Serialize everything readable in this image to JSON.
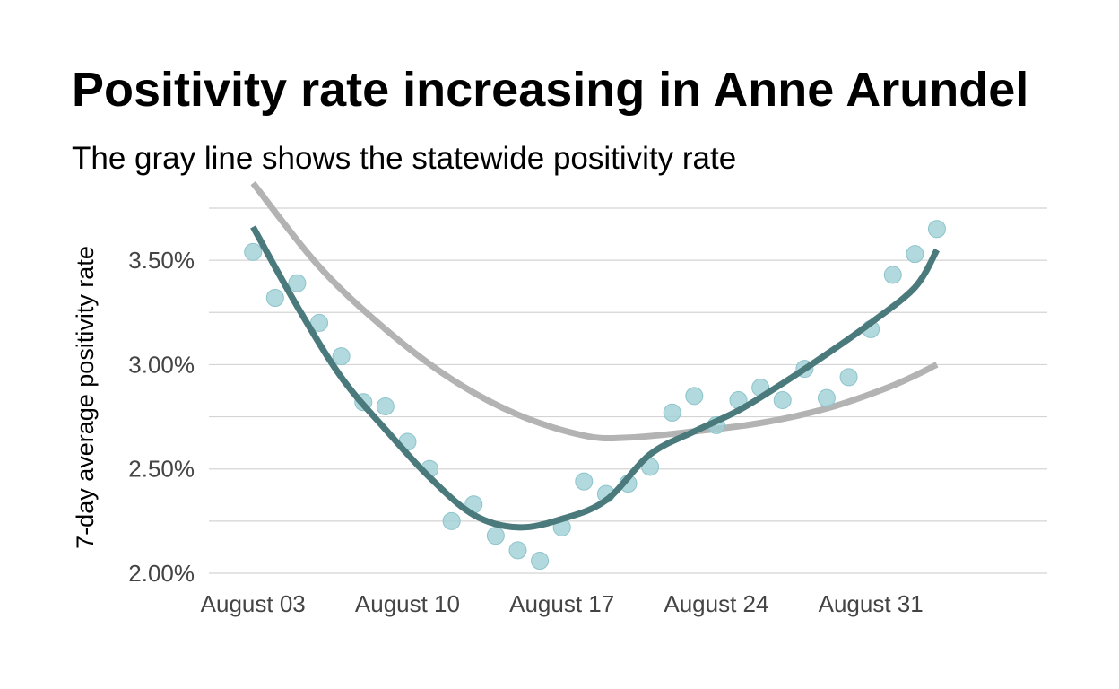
{
  "chart_data": {
    "type": "scatter",
    "title": "Positivity rate increasing in Anne Arundel",
    "subtitle": "The gray line shows the statewide positivity rate",
    "xlabel": "",
    "ylabel": "7-day average positivity rate",
    "xlim": [
      "2020-08-01",
      "2020-09-08"
    ],
    "ylim": [
      2.0,
      3.75
    ],
    "x_ticks": [
      {
        "date": "2020-08-03",
        "label": "August 03"
      },
      {
        "date": "2020-08-10",
        "label": "August 10"
      },
      {
        "date": "2020-08-17",
        "label": "August 17"
      },
      {
        "date": "2020-08-24",
        "label": "August 24"
      },
      {
        "date": "2020-08-31",
        "label": "August 31"
      }
    ],
    "y_ticks": [
      {
        "value": 2.0,
        "label": "2.00%"
      },
      {
        "value": 2.5,
        "label": "2.50%"
      },
      {
        "value": 3.0,
        "label": "3.00%"
      },
      {
        "value": 3.5,
        "label": "3.50%"
      }
    ],
    "grid": true,
    "series": [
      {
        "type": "scatter",
        "color": "#9fd0d6",
        "points": [
          [
            "2020-08-03",
            3.54
          ],
          [
            "2020-08-04",
            3.32
          ],
          [
            "2020-08-05",
            3.39
          ],
          [
            "2020-08-06",
            3.2
          ],
          [
            "2020-08-07",
            3.04
          ],
          [
            "2020-08-08",
            2.82
          ],
          [
            "2020-08-09",
            2.8
          ],
          [
            "2020-08-10",
            2.63
          ],
          [
            "2020-08-11",
            2.5
          ],
          [
            "2020-08-12",
            2.25
          ],
          [
            "2020-08-13",
            2.33
          ],
          [
            "2020-08-14",
            2.18
          ],
          [
            "2020-08-15",
            2.11
          ],
          [
            "2020-08-16",
            2.06
          ],
          [
            "2020-08-17",
            2.22
          ],
          [
            "2020-08-18",
            2.44
          ],
          [
            "2020-08-19",
            2.38
          ],
          [
            "2020-08-20",
            2.43
          ],
          [
            "2020-08-21",
            2.51
          ],
          [
            "2020-08-22",
            2.77
          ],
          [
            "2020-08-23",
            2.85
          ],
          [
            "2020-08-24",
            2.71
          ],
          [
            "2020-08-25",
            2.83
          ],
          [
            "2020-08-26",
            2.89
          ],
          [
            "2020-08-27",
            2.83
          ],
          [
            "2020-08-28",
            2.98
          ],
          [
            "2020-08-29",
            2.84
          ],
          [
            "2020-08-30",
            2.94
          ],
          [
            "2020-08-31",
            3.17
          ],
          [
            "2020-09-01",
            3.43
          ],
          [
            "2020-09-02",
            3.53
          ],
          [
            "2020-09-03",
            3.65
          ]
        ]
      },
      {
        "type": "line",
        "color": "#4a7a7c",
        "points": [
          [
            "2020-08-03",
            3.66
          ],
          [
            "2020-08-05",
            3.28
          ],
          [
            "2020-08-07",
            2.94
          ],
          [
            "2020-08-09",
            2.69
          ],
          [
            "2020-08-11",
            2.46
          ],
          [
            "2020-08-13",
            2.28
          ],
          [
            "2020-08-15",
            2.22
          ],
          [
            "2020-08-17",
            2.26
          ],
          [
            "2020-08-19",
            2.35
          ],
          [
            "2020-08-21",
            2.57
          ],
          [
            "2020-08-23",
            2.68
          ],
          [
            "2020-08-25",
            2.78
          ],
          [
            "2020-08-27",
            2.91
          ],
          [
            "2020-08-29",
            3.05
          ],
          [
            "2020-08-31",
            3.2
          ],
          [
            "2020-09-02",
            3.37
          ],
          [
            "2020-09-03",
            3.55
          ]
        ]
      },
      {
        "type": "line",
        "color": "#b3b3b3",
        "points": [
          [
            "2020-08-03",
            3.87
          ],
          [
            "2020-08-06",
            3.47
          ],
          [
            "2020-08-09",
            3.17
          ],
          [
            "2020-08-12",
            2.93
          ],
          [
            "2020-08-15",
            2.76
          ],
          [
            "2020-08-18",
            2.66
          ],
          [
            "2020-08-20",
            2.65
          ],
          [
            "2020-08-23",
            2.68
          ],
          [
            "2020-08-26",
            2.72
          ],
          [
            "2020-08-29",
            2.79
          ],
          [
            "2020-09-01",
            2.9
          ],
          [
            "2020-09-03",
            3.0
          ]
        ]
      }
    ]
  }
}
